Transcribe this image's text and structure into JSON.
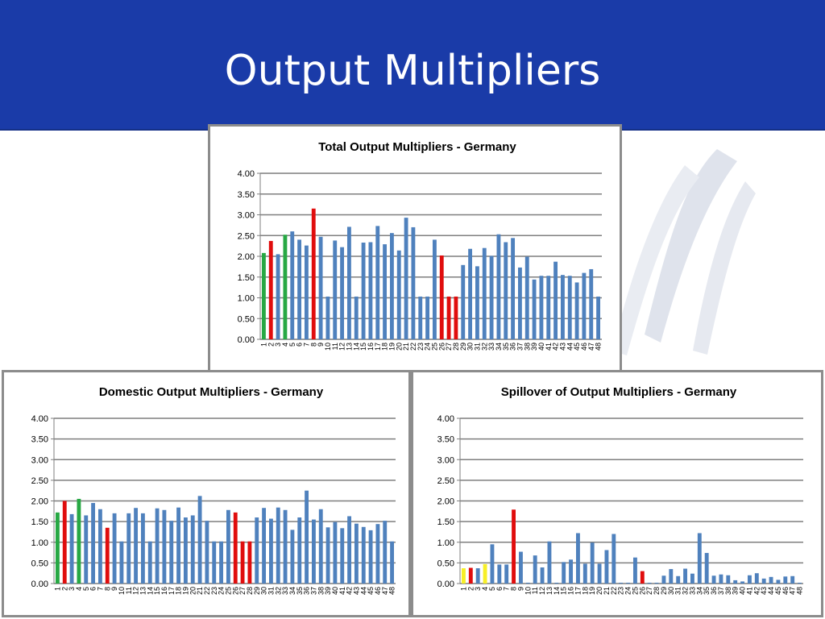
{
  "slide": {
    "title": "Output Multipliers"
  },
  "colors": {
    "header": "#1a3ba8",
    "default": "#4f81bd",
    "green": "#27a844",
    "red": "#e00d0d",
    "yellow": "#f7ef27"
  },
  "chart_data": [
    {
      "type": "bar",
      "title": "Total Output Multipliers - Germany",
      "ylim": [
        0,
        4
      ],
      "yticks": [
        "0.00",
        "0.50",
        "1.00",
        "1.50",
        "2.00",
        "2.50",
        "3.00",
        "3.50",
        "4.00"
      ],
      "grid": true,
      "categories": [
        "1",
        "2",
        "3",
        "4",
        "5",
        "6",
        "7",
        "8",
        "9",
        "10",
        "11",
        "12",
        "13",
        "14",
        "15",
        "16",
        "17",
        "18",
        "19",
        "20",
        "21",
        "22",
        "23",
        "24",
        "25",
        "26",
        "27",
        "28",
        "29",
        "30",
        "31",
        "32",
        "33",
        "34",
        "35",
        "36",
        "37",
        "38",
        "39",
        "40",
        "41",
        "42",
        "43",
        "44",
        "45",
        "46",
        "47",
        "48"
      ],
      "values": [
        2.08,
        2.37,
        2.05,
        2.52,
        2.6,
        2.4,
        2.26,
        3.15,
        2.47,
        1.03,
        2.38,
        2.22,
        2.71,
        1.03,
        2.33,
        2.34,
        2.73,
        2.29,
        2.56,
        2.14,
        2.93,
        2.7,
        1.03,
        1.03,
        2.4,
        2.02,
        1.03,
        1.03,
        1.79,
        2.18,
        1.76,
        2.2,
        2.01,
        2.53,
        2.34,
        2.44,
        1.73,
        1.99,
        1.44,
        1.53,
        1.53,
        1.87,
        1.55,
        1.53,
        1.37,
        1.6,
        1.69,
        1.03
      ],
      "highlight": {
        "1": "green",
        "2": "red",
        "4": "green",
        "8": "red",
        "26": "red",
        "27": "red",
        "28": "red"
      }
    },
    {
      "type": "bar",
      "title": "Domestic Output Multipliers - Germany",
      "ylim": [
        0,
        4
      ],
      "yticks": [
        "0.00",
        "0.50",
        "1.00",
        "1.50",
        "2.00",
        "2.50",
        "3.00",
        "3.50",
        "4.00"
      ],
      "grid": true,
      "categories": [
        "1",
        "2",
        "3",
        "4",
        "5",
        "6",
        "7",
        "8",
        "9",
        "10",
        "11",
        "12",
        "13",
        "14",
        "15",
        "16",
        "17",
        "18",
        "19",
        "20",
        "21",
        "22",
        "23",
        "24",
        "25",
        "26",
        "27",
        "28",
        "29",
        "30",
        "31",
        "32",
        "33",
        "34",
        "35",
        "36",
        "37",
        "38",
        "39",
        "40",
        "41",
        "42",
        "43",
        "44",
        "45",
        "46",
        "47",
        "48"
      ],
      "values": [
        1.72,
        2.0,
        1.68,
        2.05,
        1.65,
        1.95,
        1.8,
        1.35,
        1.7,
        1.02,
        1.7,
        1.83,
        1.7,
        1.02,
        1.82,
        1.78,
        1.52,
        1.84,
        1.6,
        1.65,
        2.12,
        1.52,
        1.02,
        1.02,
        1.78,
        1.72,
        1.02,
        1.02,
        1.6,
        1.83,
        1.57,
        1.84,
        1.78,
        1.3,
        1.6,
        2.25,
        1.55,
        1.8,
        1.36,
        1.49,
        1.34,
        1.63,
        1.45,
        1.37,
        1.29,
        1.44,
        1.52,
        1.02
      ],
      "highlight": {
        "1": "green",
        "2": "red",
        "4": "green",
        "8": "red",
        "26": "red",
        "27": "red",
        "28": "red"
      }
    },
    {
      "type": "bar",
      "title": "Spillover of Output Multipliers - Germany",
      "ylim": [
        0,
        4
      ],
      "yticks": [
        "0.00",
        "0.50",
        "1.00",
        "1.50",
        "2.00",
        "2.50",
        "3.00",
        "3.50",
        "4.00"
      ],
      "grid": true,
      "categories": [
        "1",
        "2",
        "3",
        "4",
        "5",
        "6",
        "7",
        "8",
        "9",
        "10",
        "11",
        "12",
        "13",
        "14",
        "15",
        "16",
        "17",
        "18",
        "19",
        "20",
        "21",
        "22",
        "23",
        "24",
        "25",
        "26",
        "27",
        "28",
        "29",
        "30",
        "31",
        "32",
        "33",
        "34",
        "35",
        "36",
        "37",
        "38",
        "39",
        "40",
        "41",
        "42",
        "43",
        "44",
        "45",
        "46",
        "47",
        "48"
      ],
      "values": [
        0.37,
        0.38,
        0.37,
        0.47,
        0.95,
        0.46,
        0.46,
        1.79,
        0.77,
        0.02,
        0.68,
        0.39,
        1.02,
        0.02,
        0.52,
        0.58,
        1.22,
        0.48,
        0.99,
        0.48,
        0.81,
        1.2,
        0.02,
        0.02,
        0.63,
        0.3,
        0.02,
        0.02,
        0.19,
        0.35,
        0.18,
        0.36,
        0.24,
        1.22,
        0.74,
        0.19,
        0.22,
        0.2,
        0.08,
        0.05,
        0.2,
        0.25,
        0.12,
        0.16,
        0.09,
        0.17,
        0.18,
        0.02
      ],
      "highlight": {
        "1": "yellow",
        "2": "red",
        "4": "yellow",
        "8": "red",
        "26": "red"
      }
    }
  ]
}
